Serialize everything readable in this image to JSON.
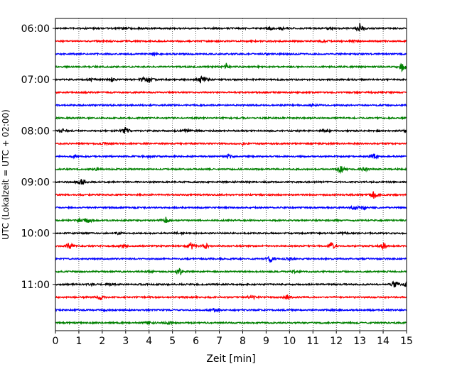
{
  "chart_data": {
    "type": "line",
    "title": "",
    "xlabel": "Zeit  [min]",
    "ylabel": "UTC (Lokalzeit = UTC + 02:00)",
    "xlim": [
      0,
      15
    ],
    "x_ticks": [
      0,
      1,
      2,
      3,
      4,
      5,
      6,
      7,
      8,
      9,
      10,
      11,
      12,
      13,
      14,
      15
    ],
    "x_tick_labels": [
      "0",
      "1",
      "2",
      "3",
      "4",
      "5",
      "6",
      "7",
      "8",
      "9",
      "10",
      "11",
      "12",
      "13",
      "14",
      "15"
    ],
    "grid": "vertical dotted",
    "trace_colors": [
      "#000000",
      "#ff0000",
      "#0000ff",
      "#008000"
    ],
    "traces": [
      {
        "label": "06:00",
        "events": [
          [
            3.0,
            0.2
          ],
          [
            9.2,
            0.3
          ],
          [
            9.7,
            0.6
          ],
          [
            11.8,
            0.4
          ],
          [
            13.0,
            1.0
          ]
        ]
      },
      {
        "label": "",
        "events": [
          [
            11.5,
            0.4
          ],
          [
            12.7,
            0.2
          ]
        ]
      },
      {
        "label": "",
        "events": [
          [
            4.3,
            0.2
          ],
          [
            9.0,
            0.15
          ]
        ]
      },
      {
        "label": "",
        "events": [
          [
            7.3,
            0.7
          ],
          [
            14.8,
            0.9
          ]
        ]
      },
      {
        "label": "07:00",
        "events": [
          [
            1.5,
            0.3
          ],
          [
            2.4,
            0.4
          ],
          [
            3.7,
            0.5
          ],
          [
            4.0,
            0.9
          ],
          [
            6.2,
            0.9
          ],
          [
            6.4,
            0.5
          ]
        ]
      },
      {
        "label": "",
        "events": []
      },
      {
        "label": "",
        "events": [
          [
            11.0,
            0.15
          ]
        ]
      },
      {
        "label": "",
        "events": [
          [
            8.0,
            0.15
          ]
        ]
      },
      {
        "label": "08:00",
        "events": [
          [
            0.3,
            0.4
          ],
          [
            3.0,
            0.9
          ],
          [
            5.6,
            0.3
          ],
          [
            11.6,
            0.3
          ],
          [
            15.0,
            0.3
          ]
        ]
      },
      {
        "label": "",
        "events": [
          [
            2.1,
            0.3
          ],
          [
            8.0,
            0.2
          ]
        ]
      },
      {
        "label": "",
        "events": [
          [
            0.8,
            0.3
          ],
          [
            4.0,
            0.3
          ],
          [
            7.4,
            0.5
          ],
          [
            13.6,
            0.7
          ]
        ]
      },
      {
        "label": "",
        "events": [
          [
            1.8,
            0.4
          ],
          [
            12.2,
            1.0
          ],
          [
            13.2,
            0.6
          ]
        ]
      },
      {
        "label": "09:00",
        "events": [
          [
            1.1,
            0.9
          ],
          [
            9.0,
            0.15
          ]
        ]
      },
      {
        "label": "",
        "events": [
          [
            13.6,
            0.8
          ]
        ]
      },
      {
        "label": "",
        "events": [
          [
            12.8,
            0.6
          ],
          [
            13.2,
            0.4
          ]
        ]
      },
      {
        "label": "",
        "events": [
          [
            1.0,
            0.5
          ],
          [
            1.4,
            0.7
          ],
          [
            4.7,
            0.8
          ],
          [
            12.0,
            0.25
          ]
        ]
      },
      {
        "label": "10:00",
        "events": [
          [
            2.7,
            0.3
          ],
          [
            5.3,
            0.3
          ],
          [
            12.3,
            0.2
          ]
        ]
      },
      {
        "label": "",
        "events": [
          [
            0.6,
            1.0
          ],
          [
            2.9,
            0.5
          ],
          [
            5.8,
            1.0
          ],
          [
            6.4,
            0.7
          ],
          [
            11.8,
            1.0
          ],
          [
            14.0,
            0.7
          ]
        ]
      },
      {
        "label": "",
        "events": [
          [
            9.2,
            1.0
          ],
          [
            10.0,
            0.3
          ]
        ]
      },
      {
        "label": "",
        "events": [
          [
            4.0,
            0.2
          ],
          [
            5.3,
            1.0
          ],
          [
            10.2,
            0.2
          ]
        ]
      },
      {
        "label": "11:00",
        "events": [
          [
            1.6,
            0.3
          ],
          [
            2.3,
            0.3
          ],
          [
            14.5,
            1.0
          ],
          [
            15.0,
            0.5
          ]
        ]
      },
      {
        "label": "",
        "events": [
          [
            1.9,
            0.6
          ],
          [
            8.4,
            0.8
          ],
          [
            9.9,
            0.5
          ]
        ]
      },
      {
        "label": "",
        "events": [
          [
            2.2,
            0.2
          ],
          [
            6.8,
            0.4
          ]
        ]
      },
      {
        "label": "",
        "events": [
          [
            4.0,
            0.6
          ],
          [
            4.8,
            0.4
          ]
        ]
      }
    ]
  }
}
